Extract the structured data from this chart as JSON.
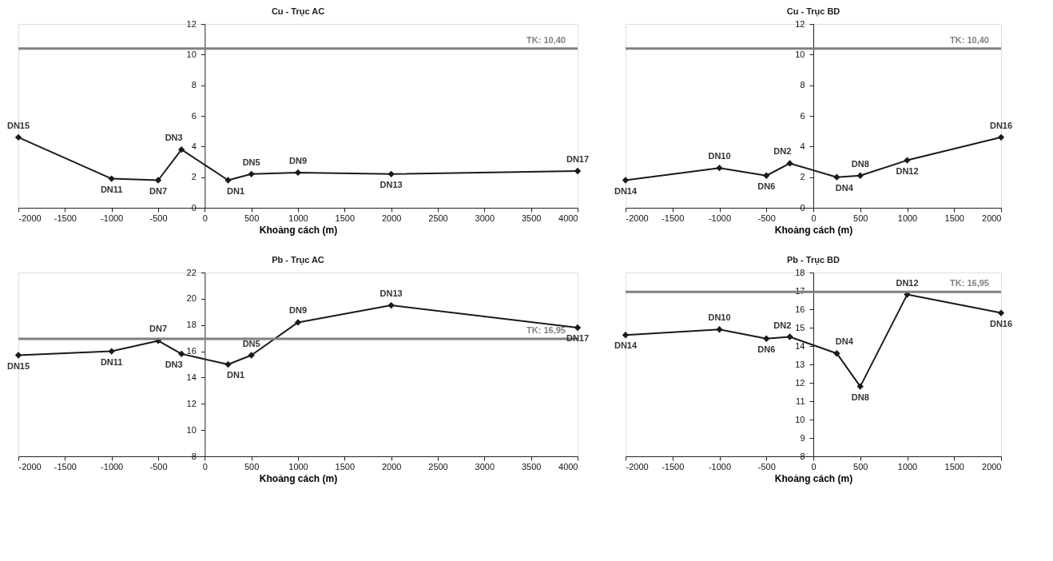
{
  "chart_data": [
    {
      "type": "line",
      "title": "Cu - Trục AC",
      "xlabel": "Khoảng cách (m)",
      "x": [
        -2000,
        -1000,
        -500,
        -250,
        250,
        500,
        1000,
        2000,
        4000
      ],
      "series": [
        {
          "color": "#1a1a1a",
          "values": [
            4.6,
            1.9,
            1.8,
            3.8,
            1.8,
            2.2,
            2.3,
            2.2,
            2.4
          ]
        }
      ],
      "xlim": [
        -2000,
        4000
      ],
      "xticks": [
        -2000,
        -1500,
        -1000,
        -500,
        0,
        500,
        1000,
        1500,
        2000,
        2500,
        3000,
        3500,
        4000
      ],
      "ylim": [
        0,
        12
      ],
      "yticks": [
        0,
        2,
        4,
        6,
        8,
        10,
        12
      ],
      "grid": false,
      "marker": "diamond",
      "line_style": "solid",
      "ref_lines": [
        {
          "axis": "y",
          "value": 10.4,
          "label": "TK: 10,40",
          "color": "#808080"
        }
      ],
      "annotations": [
        {
          "text": "DN15",
          "x": -2000,
          "y": 4.6
        },
        {
          "text": "DN11",
          "x": -1000,
          "y": 1.9
        },
        {
          "text": "DN7",
          "x": -500,
          "y": 1.8
        },
        {
          "text": "DN3",
          "x": -250,
          "y": 3.8
        },
        {
          "text": "DN1",
          "x": 250,
          "y": 1.8
        },
        {
          "text": "DN5",
          "x": 500,
          "y": 2.2
        },
        {
          "text": "DN9",
          "x": 1000,
          "y": 2.3
        },
        {
          "text": "DN13",
          "x": 2000,
          "y": 2.2
        },
        {
          "text": "DN17",
          "x": 4000,
          "y": 2.4
        }
      ]
    },
    {
      "type": "line",
      "title": "Cu - Trục BD",
      "xlabel": "Khoảng cách (m)",
      "x": [
        -2000,
        -1000,
        -500,
        -250,
        250,
        500,
        1000,
        2000
      ],
      "series": [
        {
          "color": "#1a1a1a",
          "values": [
            1.8,
            2.6,
            2.1,
            2.9,
            2.0,
            2.1,
            3.1,
            4.6
          ]
        }
      ],
      "xlim": [
        -2000,
        2000
      ],
      "xticks": [
        -2000,
        -1500,
        -1000,
        -500,
        0,
        500,
        1000,
        1500,
        2000
      ],
      "ylim": [
        0,
        12
      ],
      "yticks": [
        0,
        2,
        4,
        6,
        8,
        10,
        12
      ],
      "grid": false,
      "marker": "diamond",
      "line_style": "solid",
      "ref_lines": [
        {
          "axis": "y",
          "value": 10.4,
          "label": "TK: 10,40",
          "color": "#808080"
        }
      ],
      "annotations": [
        {
          "text": "DN14",
          "x": -2000,
          "y": 1.8
        },
        {
          "text": "DN10",
          "x": -1000,
          "y": 2.6
        },
        {
          "text": "DN6",
          "x": -500,
          "y": 2.1
        },
        {
          "text": "DN2",
          "x": -250,
          "y": 2.9
        },
        {
          "text": "DN4",
          "x": 250,
          "y": 2.0
        },
        {
          "text": "DN8",
          "x": 500,
          "y": 2.1
        },
        {
          "text": "DN12",
          "x": 1000,
          "y": 3.1
        },
        {
          "text": "DN16",
          "x": 2000,
          "y": 4.6
        }
      ]
    },
    {
      "type": "line",
      "title": "Pb - Trục AC",
      "xlabel": "Khoảng cách (m)",
      "x": [
        -2000,
        -1000,
        -500,
        -250,
        250,
        500,
        1000,
        2000,
        4000
      ],
      "series": [
        {
          "color": "#1a1a1a",
          "values": [
            15.7,
            16.0,
            16.8,
            15.8,
            15.0,
            15.7,
            18.2,
            19.5,
            17.8
          ]
        }
      ],
      "xlim": [
        -2000,
        4000
      ],
      "xticks": [
        -2000,
        -1500,
        -1000,
        -500,
        0,
        500,
        1000,
        1500,
        2000,
        2500,
        3000,
        3500,
        4000
      ],
      "ylim": [
        8,
        22
      ],
      "yticks": [
        8,
        10,
        12,
        14,
        16,
        18,
        20,
        22
      ],
      "grid": false,
      "marker": "diamond",
      "line_style": "solid",
      "ref_lines": [
        {
          "axis": "y",
          "value": 16.95,
          "label": "TK: 16,95",
          "color": "#808080"
        }
      ],
      "annotations": [
        {
          "text": "DN15",
          "x": -2000,
          "y": 15.7
        },
        {
          "text": "DN11",
          "x": -1000,
          "y": 16.0
        },
        {
          "text": "DN7",
          "x": -500,
          "y": 16.8
        },
        {
          "text": "DN3",
          "x": -250,
          "y": 15.8
        },
        {
          "text": "DN1",
          "x": 250,
          "y": 15.0
        },
        {
          "text": "DN5",
          "x": 500,
          "y": 15.7
        },
        {
          "text": "DN9",
          "x": 1000,
          "y": 18.2
        },
        {
          "text": "DN13",
          "x": 2000,
          "y": 19.5
        },
        {
          "text": "DN17",
          "x": 4000,
          "y": 17.8
        }
      ]
    },
    {
      "type": "line",
      "title": "Pb - Trục BD",
      "xlabel": "Khoảng cách (m)",
      "x": [
        -2000,
        -1000,
        -500,
        -250,
        250,
        500,
        1000,
        2000
      ],
      "series": [
        {
          "color": "#1a1a1a",
          "values": [
            14.6,
            14.9,
            14.4,
            14.5,
            13.6,
            11.8,
            16.8,
            15.8
          ]
        }
      ],
      "xlim": [
        -2000,
        2000
      ],
      "xticks": [
        -2000,
        -1500,
        -1000,
        -500,
        0,
        500,
        1000,
        1500,
        2000
      ],
      "ylim": [
        8,
        18
      ],
      "yticks": [
        8,
        9,
        10,
        11,
        12,
        13,
        14,
        15,
        16,
        17,
        18
      ],
      "grid": false,
      "marker": "diamond",
      "line_style": "solid",
      "ref_lines": [
        {
          "axis": "y",
          "value": 16.95,
          "label": "TK: 16,95",
          "color": "#808080"
        }
      ],
      "annotations": [
        {
          "text": "DN14",
          "x": -2000,
          "y": 14.6
        },
        {
          "text": "DN10",
          "x": -1000,
          "y": 14.9
        },
        {
          "text": "DN6",
          "x": -500,
          "y": 14.4
        },
        {
          "text": "DN2",
          "x": -250,
          "y": 14.5
        },
        {
          "text": "DN4",
          "x": 250,
          "y": 13.6
        },
        {
          "text": "DN8",
          "x": 500,
          "y": 11.8
        },
        {
          "text": "DN12",
          "x": 1000,
          "y": 16.8
        },
        {
          "text": "DN16",
          "x": 2000,
          "y": 15.8
        }
      ]
    }
  ]
}
